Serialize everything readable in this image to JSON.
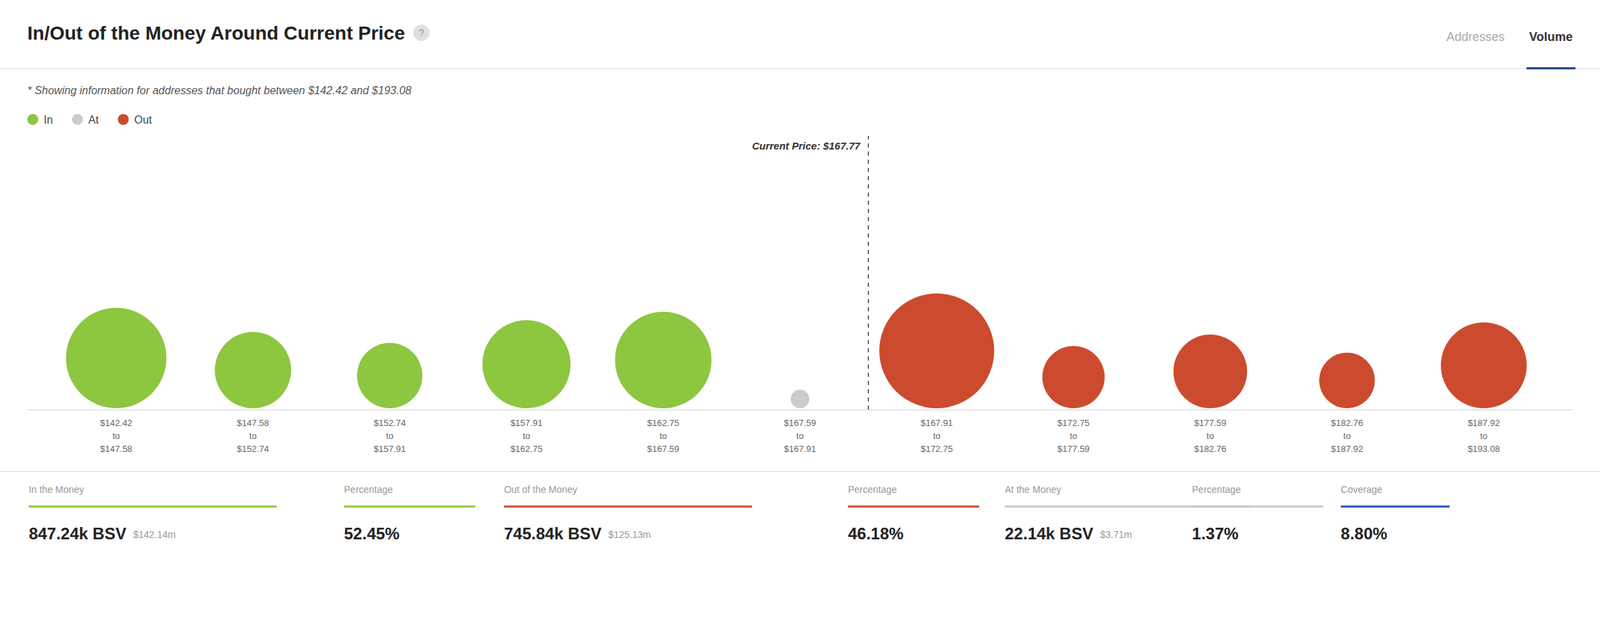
{
  "chart_data": {
    "type": "bubble",
    "title": "In/Out of the Money Around Current Price",
    "subtitle": "* Showing information for addresses that bought between $142.42 and $193.08",
    "badge": "?",
    "tabs": [
      {
        "label": "Addresses",
        "active": false
      },
      {
        "label": "Volume",
        "active": true
      }
    ],
    "categories": [
      "$142.42\nto\n$147.58",
      "$147.58\nto\n$152.74",
      "$152.74\nto\n$157.91",
      "$157.91\nto\n$162.75",
      "$162.75\nto\n$167.59",
      "$167.59\nto\n$167.91",
      "$167.91\nto\n$172.75",
      "$172.75\nto\n$177.59",
      "$177.59\nto\n$182.76",
      "$182.76\nto\n$187.92",
      "$187.92\nto\n$193.08"
    ],
    "series": [
      {
        "name": "In",
        "color": "#8dc63f",
        "sizes": [
          5200,
          3000,
          2200,
          4000,
          4800,
          null,
          null,
          null,
          null,
          null,
          null
        ]
      },
      {
        "name": "At",
        "color": "#cccccc",
        "sizes": [
          null,
          null,
          null,
          null,
          null,
          180,
          null,
          null,
          null,
          null,
          null
        ]
      },
      {
        "name": "Out",
        "color": "#cc4b2e",
        "sizes": [
          null,
          null,
          null,
          null,
          null,
          null,
          6800,
          2000,
          2800,
          1600,
          3800
        ]
      }
    ],
    "legend": "top-left",
    "grid": false,
    "tick_labels": "x",
    "annotations": [
      {
        "text": "Current Price: $167.77",
        "x": 5.5
      }
    ],
    "stats": [
      {
        "label": "In the Money",
        "color": "#8dc63f",
        "value": "847.24k BSV",
        "subvalue": "$142.14m"
      },
      {
        "label": "Percentage",
        "color": "#8dc63f",
        "value": "52.45%"
      },
      {
        "label": "Out of the Money",
        "color": "#cc4b2e",
        "value": "745.84k BSV",
        "subvalue": "$125.13m"
      },
      {
        "label": "Percentage",
        "color": "#cc4b2e",
        "value": "46.18%"
      },
      {
        "label": "At the Money",
        "color": "#cccccc",
        "value": "22.14k BSV",
        "subvalue": "$3.71m"
      },
      {
        "label": "Percentage",
        "color": "#cccccc",
        "value": "1.37%"
      },
      {
        "label": "Coverage",
        "color": "#2255bb",
        "value": "8.80%"
      }
    ]
  }
}
